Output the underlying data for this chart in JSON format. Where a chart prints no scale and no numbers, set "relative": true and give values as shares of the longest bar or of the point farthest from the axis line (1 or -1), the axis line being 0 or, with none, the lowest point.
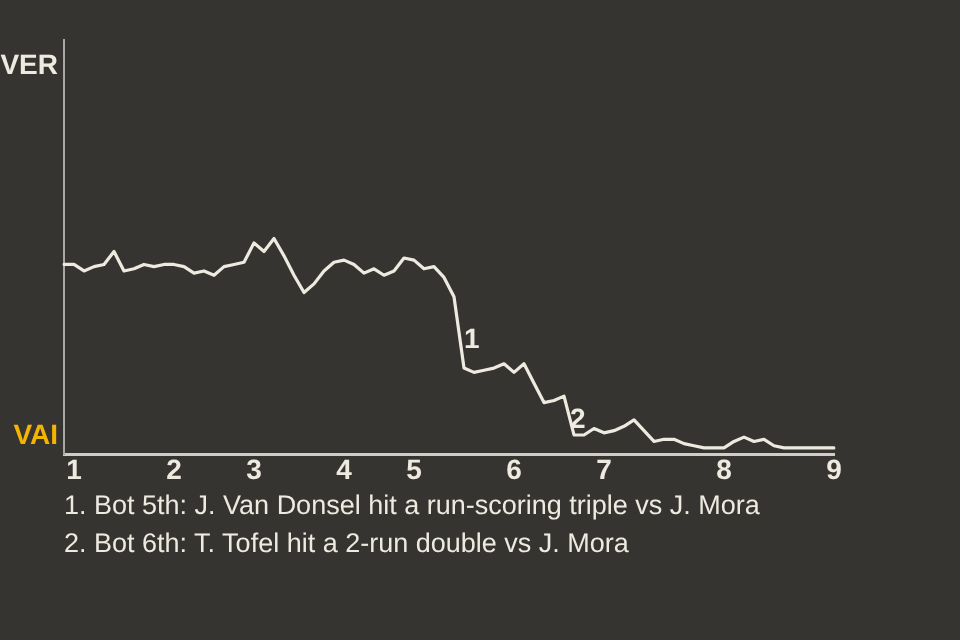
{
  "chart_data": {
    "type": "line",
    "categories": [
      null,
      "1",
      null,
      null,
      null,
      null,
      null,
      null,
      null,
      null,
      null,
      "2",
      null,
      null,
      null,
      null,
      null,
      null,
      null,
      "3",
      null,
      null,
      null,
      null,
      null,
      null,
      null,
      null,
      "4",
      null,
      null,
      null,
      null,
      null,
      null,
      "5",
      null,
      null,
      null,
      null,
      null,
      null,
      null,
      null,
      null,
      "6",
      null,
      null,
      null,
      null,
      null,
      null,
      null,
      null,
      "7",
      null,
      null,
      null,
      null,
      null,
      null,
      null,
      null,
      null,
      null,
      null,
      "8",
      null,
      null,
      null,
      null,
      null,
      null,
      null,
      null,
      null,
      null,
      "9"
    ],
    "relative": true,
    "series": [
      {
        "color": "#eeeae0",
        "values": [
          0.88,
          0.88,
          0.85,
          0.87,
          0.88,
          0.94,
          0.85,
          0.86,
          0.88,
          0.87,
          0.88,
          0.88,
          0.87,
          0.84,
          0.85,
          0.83,
          0.87,
          0.88,
          0.89,
          0.98,
          0.94,
          1,
          0.92,
          0.83,
          0.75,
          0.79,
          0.85,
          0.89,
          0.9,
          0.88,
          0.84,
          0.86,
          0.83,
          0.85,
          0.91,
          0.9,
          0.86,
          0.87,
          0.82,
          0.73,
          0.4,
          0.38,
          0.39,
          0.4,
          0.42,
          0.38,
          0.42,
          0.33,
          0.24,
          0.25,
          0.27,
          0.09,
          0.09,
          0.12,
          0.1,
          0.11,
          0.13,
          0.16,
          0.11,
          0.06,
          0.07,
          0.07,
          0.05,
          0.04,
          0.03,
          0.03,
          0.03,
          0.06,
          0.08,
          0.06,
          0.07,
          0.04,
          0.03,
          0.03,
          0.03,
          0.03,
          0.03,
          0.03
        ]
      }
    ],
    "annotations": [
      "VER",
      "VAI",
      "1",
      "2",
      "1. Bot 5th: J. Van Donsel hit a run-scoring triple vs J. Mora",
      "2. Bot 6th: T. Tofel hit a 2-run double vs J. Mora"
    ]
  }
}
